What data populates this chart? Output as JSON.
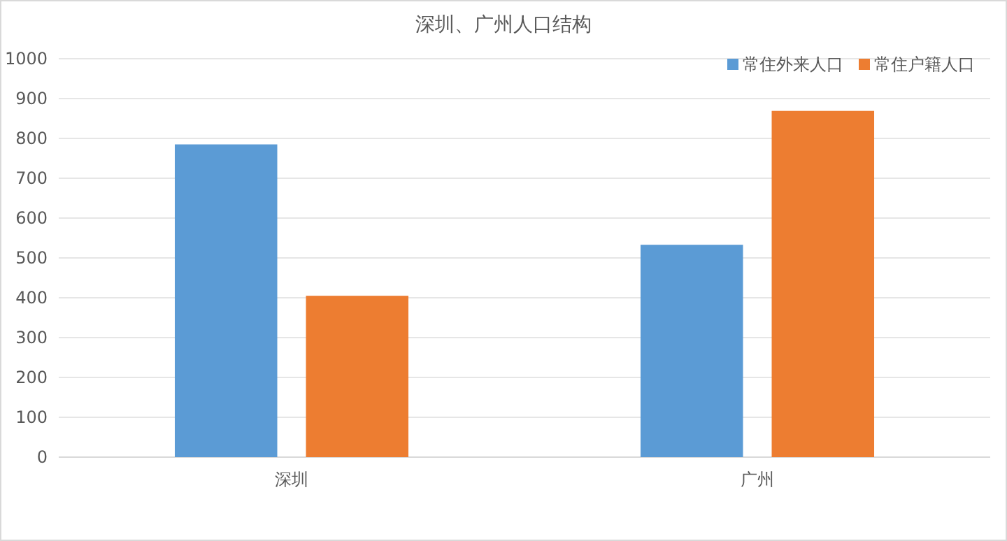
{
  "chart_data": {
    "type": "bar",
    "title": "深圳、广州人口结构",
    "categories": [
      "深圳",
      "广州"
    ],
    "series": [
      {
        "name": "常住外来人口",
        "color": "#5b9bd5",
        "values": [
          785,
          533
        ]
      },
      {
        "name": "常住户籍人口",
        "color": "#ed7d31",
        "values": [
          405,
          869
        ]
      }
    ],
    "ylim": [
      0,
      1000
    ],
    "yticks": [
      0,
      100,
      200,
      300,
      400,
      500,
      600,
      700,
      800,
      900,
      1000
    ],
    "grid": "y",
    "legend": "top right"
  }
}
